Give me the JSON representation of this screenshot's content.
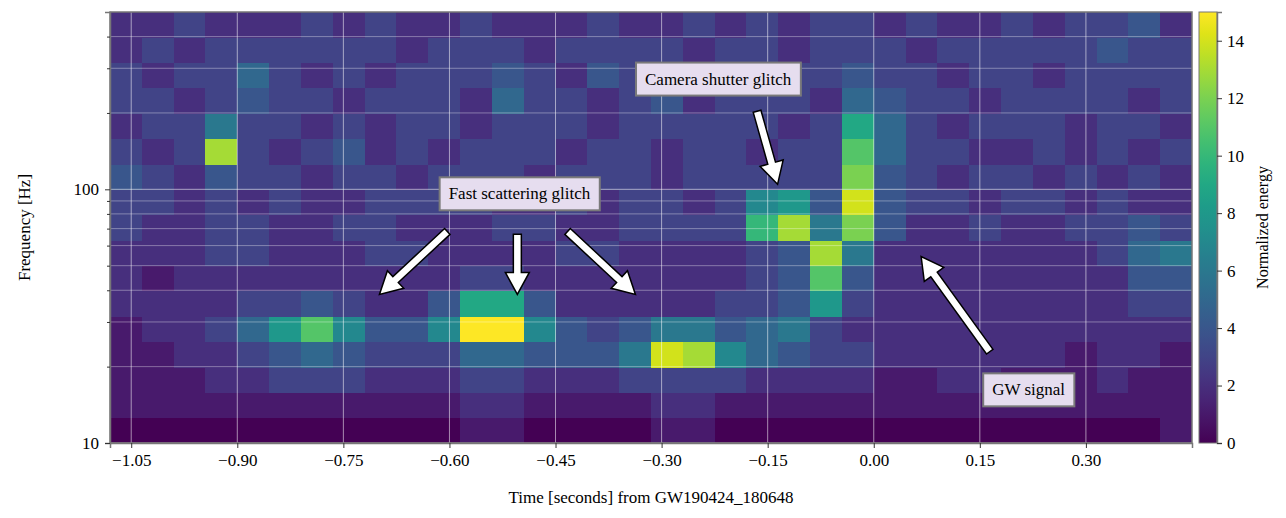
{
  "chart_data": {
    "type": "heatmap",
    "xlabel": "Time [seconds] from GW190424_180648",
    "ylabel": "Frequency [Hz]",
    "log": "y",
    "grid": true,
    "color": "viridis",
    "xlim": [
      -1.08,
      0.45
    ],
    "ylim": [
      10,
      500
    ],
    "xticks": [
      {
        "value": -1.05,
        "label": "−1.05"
      },
      {
        "value": -0.9,
        "label": "−0.90"
      },
      {
        "value": -0.75,
        "label": "−0.75"
      },
      {
        "value": -0.6,
        "label": "−0.60"
      },
      {
        "value": -0.45,
        "label": "−0.45"
      },
      {
        "value": -0.3,
        "label": "−0.30"
      },
      {
        "value": -0.15,
        "label": "−0.15"
      },
      {
        "value": 0,
        "label": "0.00"
      },
      {
        "value": 0.15,
        "label": "0.15"
      },
      {
        "value": 0.3,
        "label": "0.30"
      }
    ],
    "yticks": [
      10,
      100
    ],
    "yticks_minor": [
      20,
      30,
      40,
      50,
      60,
      70,
      80,
      90,
      200,
      300,
      400
    ],
    "x_bins": [
      -1.08,
      -1.035,
      -0.99,
      -0.945,
      -0.9,
      -0.855,
      -0.81,
      -0.765,
      -0.72,
      -0.675,
      -0.63,
      -0.585,
      -0.54,
      -0.495,
      -0.45,
      -0.405,
      -0.36,
      -0.315,
      -0.27,
      -0.225,
      -0.18,
      -0.135,
      -0.09,
      -0.045,
      0,
      0.045,
      0.09,
      0.135,
      0.18,
      0.225,
      0.27,
      0.315,
      0.36,
      0.405,
      0.45
    ],
    "y_bins": [
      10,
      12.59,
      15.85,
      19.95,
      25.12,
      31.62,
      39.81,
      50.12,
      63.1,
      79.43,
      100,
      125.9,
      158.5,
      199.5,
      251.2,
      316.2,
      398.1,
      501.2
    ],
    "z": [
      [
        0,
        0,
        0,
        0,
        0,
        0,
        0,
        0,
        0,
        0,
        0,
        1,
        1,
        0,
        0,
        0,
        0,
        1,
        1,
        0,
        0,
        0,
        0,
        0,
        0,
        0,
        0,
        0,
        0,
        0,
        0,
        0,
        0,
        1
      ],
      [
        1,
        1,
        1,
        1,
        1,
        1,
        1,
        1,
        1,
        1,
        1,
        2,
        2,
        1,
        1,
        1,
        1,
        2,
        2,
        1,
        1,
        1,
        1,
        1,
        1,
        1,
        1,
        1,
        1,
        1,
        1,
        1,
        1,
        1
      ],
      [
        1,
        1,
        1,
        2,
        2,
        3,
        3,
        3,
        2,
        2,
        2,
        3,
        3,
        2,
        2,
        2,
        3,
        3,
        3,
        3,
        2,
        2,
        2,
        2,
        1,
        1,
        2,
        2,
        1,
        1,
        1,
        2,
        1,
        1
      ],
      [
        1,
        1,
        2,
        2,
        3,
        4,
        5,
        4,
        3,
        3,
        3,
        5,
        5,
        4,
        4,
        4,
        6,
        14,
        13,
        7,
        5,
        4,
        3,
        3,
        2,
        2,
        2,
        2,
        2,
        2,
        1,
        2,
        2,
        1
      ],
      [
        1,
        2,
        2,
        3,
        5,
        8,
        11,
        7,
        4,
        4,
        7,
        15,
        15,
        7,
        4,
        3,
        4,
        6,
        6,
        4,
        5,
        6,
        3,
        2,
        2,
        2,
        2,
        2,
        2,
        2,
        2,
        2,
        2,
        2
      ],
      [
        2,
        2,
        2,
        2,
        3,
        3,
        4,
        3,
        2,
        2,
        4,
        9,
        9,
        4,
        2,
        2,
        2,
        2,
        2,
        3,
        3,
        4,
        8,
        3,
        2,
        2,
        2,
        2,
        2,
        2,
        2,
        2,
        3,
        3
      ],
      [
        2,
        1,
        2,
        2,
        2,
        2,
        2,
        2,
        2,
        2,
        2,
        3,
        3,
        2,
        2,
        2,
        2,
        2,
        2,
        2,
        3,
        4,
        11,
        4,
        2,
        2,
        2,
        2,
        2,
        2,
        2,
        2,
        4,
        4
      ],
      [
        2,
        2,
        2,
        3,
        3,
        2,
        2,
        2,
        3,
        3,
        2,
        2,
        2,
        2,
        3,
        3,
        2,
        2,
        2,
        2,
        3,
        4,
        13,
        6,
        2,
        2,
        2,
        2,
        2,
        2,
        2,
        3,
        5,
        6
      ],
      [
        3,
        2,
        2,
        3,
        3,
        2,
        2,
        3,
        3,
        2,
        2,
        2,
        3,
        3,
        2,
        2,
        3,
        3,
        3,
        3,
        10,
        13,
        6,
        12,
        4,
        2,
        2,
        3,
        2,
        2,
        3,
        3,
        4,
        3
      ],
      [
        3,
        3,
        2,
        3,
        2,
        3,
        2,
        2,
        3,
        3,
        3,
        3,
        2,
        2,
        3,
        2,
        3,
        3,
        2,
        3,
        7,
        8,
        4,
        14,
        4,
        3,
        3,
        2,
        3,
        3,
        2,
        3,
        2,
        2
      ],
      [
        4,
        3,
        2,
        4,
        3,
        3,
        2,
        3,
        3,
        2,
        3,
        3,
        3,
        2,
        3,
        3,
        3,
        2,
        3,
        3,
        3,
        3,
        3,
        12,
        4,
        3,
        2,
        3,
        3,
        2,
        3,
        2,
        3,
        2
      ],
      [
        3,
        2,
        3,
        13,
        3,
        2,
        3,
        4,
        2,
        3,
        2,
        3,
        3,
        3,
        2,
        3,
        3,
        2,
        3,
        3,
        2,
        3,
        3,
        11,
        5,
        3,
        3,
        2,
        2,
        3,
        2,
        3,
        2,
        3
      ],
      [
        2,
        3,
        3,
        6,
        3,
        3,
        2,
        3,
        2,
        3,
        3,
        2,
        3,
        3,
        3,
        2,
        3,
        3,
        3,
        3,
        3,
        2,
        3,
        9,
        5,
        3,
        2,
        3,
        3,
        3,
        2,
        3,
        3,
        2
      ],
      [
        3,
        3,
        2,
        3,
        4,
        3,
        3,
        2,
        3,
        3,
        3,
        2,
        5,
        3,
        3,
        2,
        3,
        4,
        2,
        3,
        3,
        3,
        2,
        5,
        4,
        3,
        3,
        2,
        3,
        3,
        3,
        3,
        2,
        3
      ],
      [
        3,
        2,
        3,
        3,
        5,
        3,
        2,
        3,
        2,
        3,
        3,
        3,
        4,
        3,
        2,
        4,
        3,
        5,
        3,
        3,
        2,
        3,
        3,
        4,
        3,
        3,
        2,
        3,
        3,
        2,
        3,
        3,
        3,
        3
      ],
      [
        2,
        3,
        2,
        3,
        3,
        3,
        3,
        3,
        3,
        2,
        3,
        3,
        3,
        2,
        3,
        3,
        3,
        3,
        2,
        3,
        3,
        2,
        3,
        3,
        3,
        2,
        3,
        3,
        3,
        3,
        3,
        4,
        3,
        3
      ],
      [
        2,
        2,
        3,
        2,
        2,
        2,
        3,
        2,
        3,
        2,
        2,
        3,
        2,
        2,
        2,
        3,
        2,
        2,
        3,
        2,
        3,
        2,
        3,
        3,
        2,
        3,
        2,
        2,
        3,
        2,
        3,
        3,
        4,
        2
      ]
    ],
    "colorbar": {
      "label": "Normalized energy",
      "range": [
        0,
        15
      ],
      "ticks": [
        0,
        2,
        4,
        6,
        8,
        10,
        12,
        14
      ]
    },
    "annotations": [
      {
        "text": "Camera shutter glitch",
        "x": -0.22,
        "y": 272,
        "arrows": [
          [
            -0.165,
            203,
            -0.136,
            104.6
          ]
        ]
      },
      {
        "text": "Fast scattering glitch",
        "x": -0.501,
        "y": 96,
        "arrows": [
          [
            -0.603,
            68.2,
            -0.699,
            38.5
          ],
          [
            -0.504,
            66.5,
            -0.504,
            38.5
          ],
          [
            -0.433,
            68.2,
            -0.337,
            38.5
          ]
        ]
      },
      {
        "text": "GW signal",
        "x": 0.219,
        "y": 16.2,
        "arrows": [
          [
            0.164,
            22.9,
            0.067,
            54.3
          ]
        ]
      }
    ]
  }
}
